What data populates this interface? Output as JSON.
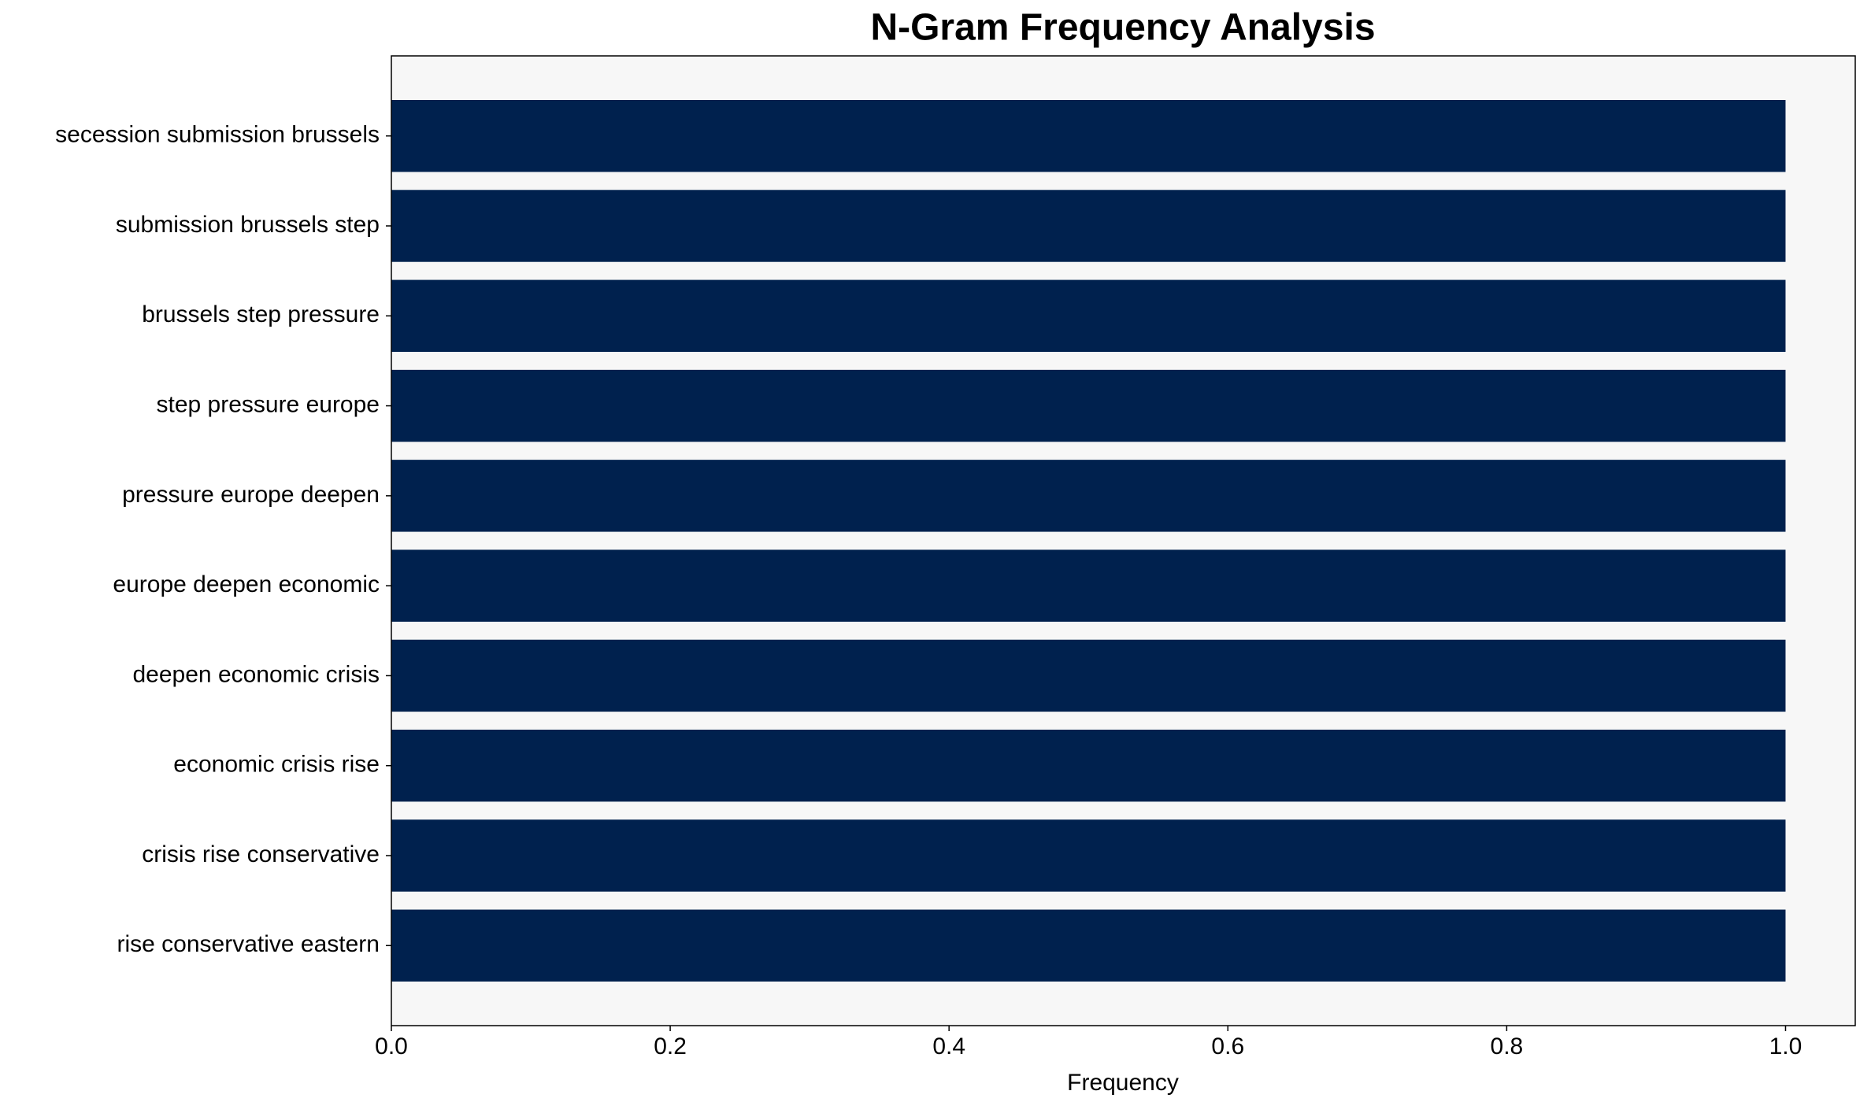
{
  "chart_data": {
    "type": "barh",
    "title": "N-Gram Frequency Analysis",
    "x_label": "Frequency",
    "categories": [
      "secession submission brussels",
      "submission brussels step",
      "brussels step pressure",
      "step pressure europe",
      "pressure europe deepen",
      "europe deepen economic",
      "deepen economic crisis",
      "economic crisis rise",
      "crisis rise conservative",
      "rise conservative eastern"
    ],
    "values": [
      1,
      1,
      1,
      1,
      1,
      1,
      1,
      1,
      1,
      1
    ],
    "color": "#00214e",
    "background": "#f7f7f7",
    "xlim": [
      0,
      1.05
    ],
    "xticks": [
      {
        "value": 0,
        "label": "0.0"
      },
      0.2,
      0.4,
      0.6,
      0.8,
      {
        "value": 1,
        "label": "1.0"
      }
    ],
    "grid": false
  }
}
